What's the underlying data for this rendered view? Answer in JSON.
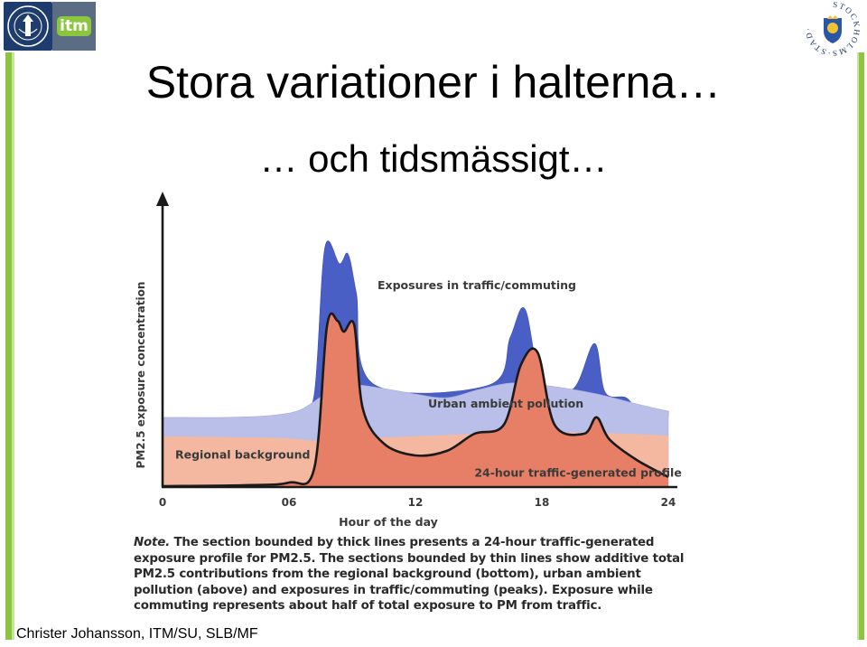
{
  "slide": {
    "title": "Stora variationer i halterna…",
    "subtitle": "… och tidsmässigt…",
    "footer": "Christer Johansson, ITM/SU, SLB/MF"
  },
  "logos": {
    "left_text": "itm",
    "right_ring_text": "STOCKHOLMS·STAD·"
  },
  "note": {
    "lead": "Note.",
    "text": " The section bounded by thick lines presents a 24-hour traffic-generated exposure profile for PM2.5. The sections bounded by thin lines show additive total PM2.5 contributions from the regional background (bottom), urban ambient pollution (above) and exposures in traffic/commuting (peaks). Exposure while commuting represents about half of total exposure to PM from traffic."
  },
  "colors": {
    "regional": "#f4b8a0",
    "urban": "#b9bfe8",
    "traffic": "#4a5fc6",
    "profile": "#e77f66",
    "green": "#8cc63f",
    "label": "#3a3a3a"
  },
  "chart_data": {
    "type": "area",
    "title": "",
    "xlabel": "Hour of the day",
    "ylabel": "PM2.5 exposure concentration",
    "xlim": [
      0,
      24
    ],
    "ylim": [
      0,
      100
    ],
    "xticks": [
      0,
      6,
      12,
      18,
      24
    ],
    "xtick_labels": [
      "0",
      "06",
      "12",
      "18",
      "24"
    ],
    "series": [
      {
        "name": "Regional background",
        "kind": "stacked-layer",
        "x": [
          0,
          4,
          6,
          8,
          9.5,
          12,
          15,
          17.5,
          20,
          22,
          24
        ],
        "y": [
          20.7,
          20.3,
          19.9,
          18.4,
          19.9,
          20.7,
          21.8,
          22.6,
          22.2,
          21.8,
          21.1
        ]
      },
      {
        "name": "Urban ambient pollution",
        "kind": "stacked-layer",
        "x": [
          0,
          3,
          5,
          6.5,
          7.8,
          9,
          10.5,
          12,
          13.5,
          15,
          16.5,
          18,
          19.5,
          21,
          22.5,
          24
        ],
        "y": [
          28.6,
          28.6,
          29.3,
          31.6,
          38.7,
          42.1,
          40.6,
          38.3,
          36.8,
          40.2,
          42.9,
          42.1,
          40.2,
          37.6,
          34.2,
          31.2
        ]
      },
      {
        "name": "Exposures in traffic/commuting",
        "kind": "peaks",
        "x": [
          6.5,
          7.2,
          7.7,
          8.4,
          8.8,
          9.2,
          10,
          15.5,
          16.5,
          17.2,
          18,
          19.5,
          20.5,
          21,
          22,
          22.7,
          24
        ],
        "y": [
          29.3,
          38.3,
          99.2,
          92.5,
          96.6,
          80.1,
          42.5,
          42.1,
          62.0,
          73.7,
          42.9,
          40.6,
          59.4,
          39.1,
          36.8,
          30.8,
          31.2
        ]
      },
      {
        "name": "24-hour traffic-generated profile",
        "kind": "profile",
        "x": [
          0,
          4,
          6,
          7.2,
          7.8,
          8.3,
          8.6,
          9.1,
          9.5,
          10.5,
          12,
          13.5,
          14.8,
          16.2,
          17,
          17.8,
          18.6,
          20,
          20.6,
          21.2,
          22.5,
          24
        ],
        "y": [
          0,
          0.4,
          1.5,
          7.5,
          66.5,
          68.8,
          64.3,
          66.9,
          32.3,
          17.7,
          12.8,
          14.7,
          21.8,
          25.6,
          50.4,
          55.6,
          25.6,
          21.8,
          28.6,
          19.5,
          10.9,
          3.8
        ]
      }
    ],
    "annotations": [
      {
        "text": "Exposures in traffic/commuting",
        "x": 10.2,
        "y": 82.0
      },
      {
        "text": "Urban ambient pollution",
        "x": 12.6,
        "y": 32.7
      },
      {
        "text": "Regional background",
        "x": 0.6,
        "y": 11.5
      },
      {
        "text": "24-hour traffic-generated profile",
        "x": 14.8,
        "y": 4.0
      }
    ]
  }
}
